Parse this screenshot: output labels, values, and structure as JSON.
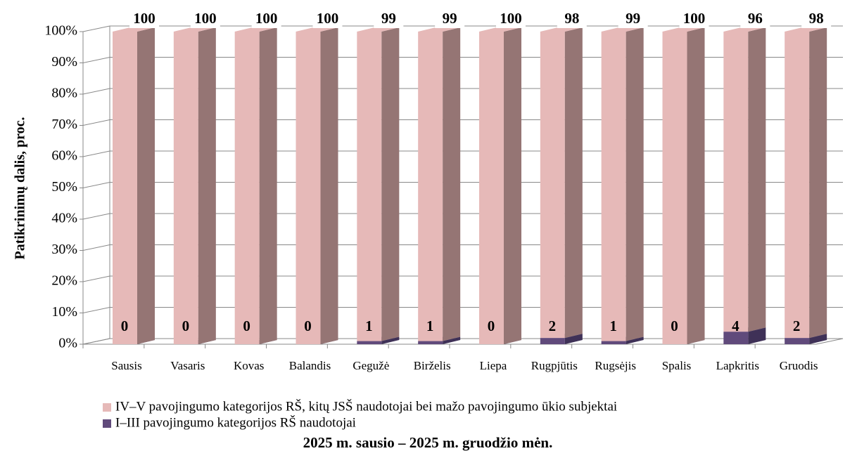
{
  "chart_data": {
    "type": "bar3d_stacked",
    "y_label": "Patikrinimų dalis, proc.",
    "subtitle": "2025 m. sausio – 2025 m. gruodžio mėn.",
    "categories": [
      "Sausis",
      "Vasaris",
      "Kovas",
      "Balandis",
      "Gegužė",
      "Birželis",
      "Liepa",
      "Rugpjūtis",
      "Rugsėjis",
      "Spalis",
      "Lapkritis",
      "Gruodis"
    ],
    "series": [
      {
        "name": "IV–V pavojingumo kategorijos RŠ, kitų JSŠ naudotojai bei mažo pavojingumo ūkio subjektai",
        "color": "#e6b9b8",
        "side_color": "#957574",
        "values": [
          100,
          100,
          100,
          100,
          99,
          99,
          100,
          98,
          99,
          100,
          96,
          98
        ]
      },
      {
        "name": "I–III pavojingumo kategorijos RŠ naudotojai",
        "color": "#604a7b",
        "side_color": "#3f3157",
        "values": [
          0,
          0,
          0,
          0,
          1,
          1,
          0,
          2,
          1,
          0,
          4,
          2
        ]
      }
    ],
    "ylim": [
      0,
      100
    ],
    "yticks": [
      {
        "value": 0,
        "label": "0%"
      },
      {
        "value": 10,
        "label": "10%"
      },
      {
        "value": 20,
        "label": "20%"
      },
      {
        "value": 30,
        "label": "30%"
      },
      {
        "value": 40,
        "label": "40%"
      },
      {
        "value": 50,
        "label": "50%"
      },
      {
        "value": 60,
        "label": "60%"
      },
      {
        "value": 70,
        "label": "70%"
      },
      {
        "value": 80,
        "label": "80%"
      },
      {
        "value": 90,
        "label": "90%"
      },
      {
        "value": 100,
        "label": "100%"
      }
    ],
    "grid": true
  }
}
